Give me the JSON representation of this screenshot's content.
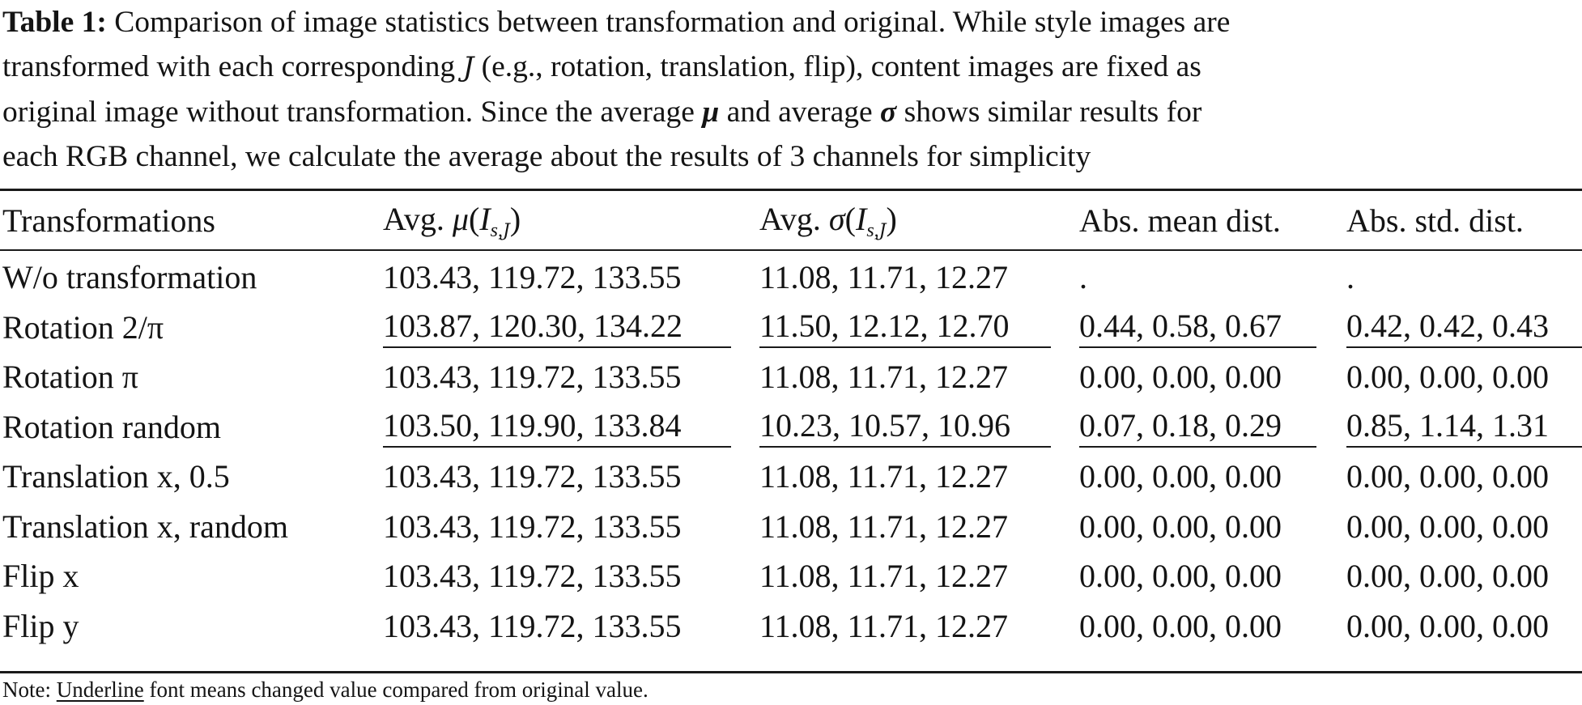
{
  "caption": {
    "label": "Table 1:",
    "line1": "Comparison of image statistics between transformation and original. While style images are",
    "line2a": "transformed with each corresponding",
    "jsym": "J",
    "line2b": "(e.g., rotation, translation, flip), content images are fixed as",
    "line3a": "original image without transformation. Since the average",
    "mu": "μ",
    "line3b": "and average",
    "sigma": "σ",
    "line3c": "shows similar results for",
    "line4": "each RGB channel, we calculate the average about the results of 3 channels for simplicity"
  },
  "header": {
    "transformations": "Transformations",
    "avg_mu_prefix": "Avg.",
    "mu": "μ",
    "avg_sigma_prefix": "Avg.",
    "sigma": "σ",
    "I": "I",
    "sub_s": "s,",
    "sub_j": "J",
    "abs_mean": "Abs. mean dist.",
    "abs_std": "Abs. std. dist."
  },
  "rows": [
    {
      "name": "W/o transformation",
      "mu": "103.43, 119.72, 133.55",
      "sigma": "11.08, 11.71, 12.27",
      "mean_dist": ".",
      "std_dist": ".",
      "ul": false
    },
    {
      "name": "Rotation 2/π",
      "mu": "103.87, 120.30, 134.22",
      "sigma": "11.50, 12.12, 12.70",
      "mean_dist": "0.44, 0.58, 0.67",
      "std_dist": "0.42, 0.42, 0.43",
      "ul": true
    },
    {
      "name": "Rotation π",
      "mu": "103.43, 119.72, 133.55",
      "sigma": "11.08, 11.71, 12.27",
      "mean_dist": "0.00, 0.00, 0.00",
      "std_dist": "0.00, 0.00, 0.00",
      "ul": false
    },
    {
      "name": "Rotation random",
      "mu": "103.50, 119.90, 133.84",
      "sigma": "10.23, 10.57, 10.96",
      "mean_dist": "0.07, 0.18, 0.29",
      "std_dist": "0.85, 1.14, 1.31",
      "ul": true
    },
    {
      "name": "Translation x, 0.5",
      "mu": "103.43, 119.72, 133.55",
      "sigma": "11.08, 11.71, 12.27",
      "mean_dist": "0.00, 0.00, 0.00",
      "std_dist": "0.00, 0.00, 0.00",
      "ul": false
    },
    {
      "name": "Translation x, random",
      "mu": "103.43, 119.72, 133.55",
      "sigma": "11.08, 11.71, 12.27",
      "mean_dist": "0.00, 0.00, 0.00",
      "std_dist": "0.00, 0.00, 0.00",
      "ul": false
    },
    {
      "name": "Flip x",
      "mu": "103.43, 119.72, 133.55",
      "sigma": "11.08, 11.71, 12.27",
      "mean_dist": "0.00, 0.00, 0.00",
      "std_dist": "0.00, 0.00, 0.00",
      "ul": false
    },
    {
      "name": "Flip y",
      "mu": "103.43, 119.72, 133.55",
      "sigma": "11.08, 11.71, 12.27",
      "mean_dist": "0.00, 0.00, 0.00",
      "std_dist": "0.00, 0.00, 0.00",
      "ul": false
    }
  ],
  "note": {
    "prefix": "Note:",
    "underline_word": "Underline",
    "rest": "font means changed value compared from original value."
  }
}
